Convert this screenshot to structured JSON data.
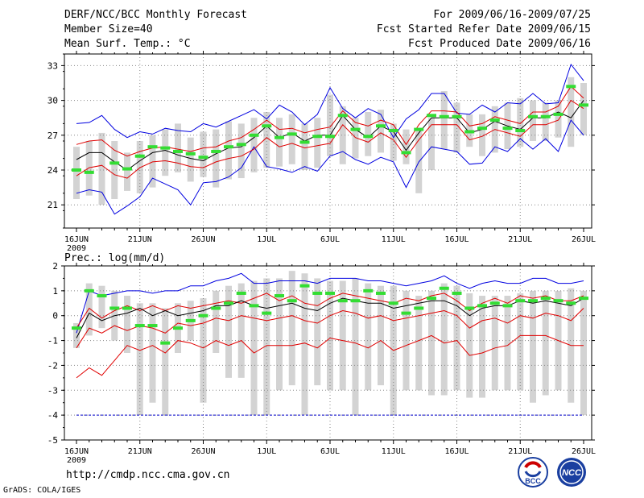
{
  "header": {
    "title": "DERF/NCC/BCC Monthly Forecast",
    "member_size": "Member Size=40",
    "variable": "Mean Surf. Temp.: °C",
    "forecast_period": "For 2009/06/16-2009/07/25",
    "started_date": "Fcst Started Refer Date 2009/06/15",
    "produced_date": "Fcst Produced Date 2009/06/16"
  },
  "footer": {
    "url": "http://cmdp.ncc.cma.gov.cn",
    "grads_credit": "GrADS: COLA/IGES"
  },
  "logos": {
    "bcc": "BCC",
    "ncc": "NCC"
  },
  "colors": {
    "box": "#d3d3d3",
    "mean": "#000000",
    "band_inner": "#e00000",
    "band_outer": "#0000e0",
    "median": "#33dd33",
    "grid": "#888888",
    "min_line": "#0000cc"
  },
  "chart_data": [
    {
      "type": "box",
      "title": "Mean Surf. Temp.: °C",
      "ylim": [
        19,
        34
      ],
      "yticks": [
        21,
        24,
        27,
        30,
        33
      ],
      "x_tick_labels": [
        "16JUN",
        "21JUN",
        "26JUN",
        "1JUL",
        "6JUL",
        "11JUL",
        "16JUL",
        "21JUL",
        "26JUL"
      ],
      "x_year_label": "2009",
      "days": 41,
      "box_low": [
        21.5,
        21.8,
        21.0,
        21.5,
        22.2,
        22.0,
        22.5,
        23.5,
        23.8,
        23.0,
        23.4,
        22.5,
        23.2,
        23.3,
        23.8,
        24.2,
        24.3,
        24.5,
        24.0,
        24.2,
        25.2,
        24.5,
        25.0,
        25.2,
        25.5,
        24.8,
        24.5,
        22.0,
        24.0,
        25.8,
        25.5,
        26.0,
        25.2,
        25.5,
        25.8,
        26.0,
        26.5,
        26.5,
        26.8,
        26.0,
        27.0
      ],
      "box_high": [
        26.0,
        26.5,
        27.2,
        26.5,
        25.5,
        26.5,
        27.0,
        27.5,
        28.0,
        26.8,
        27.3,
        27.5,
        28.2,
        28.0,
        28.5,
        29.0,
        28.5,
        28.8,
        28.0,
        28.5,
        30.5,
        29.5,
        28.5,
        29.0,
        29.2,
        28.0,
        27.5,
        27.5,
        28.5,
        30.8,
        29.8,
        28.8,
        28.8,
        29.5,
        29.8,
        30.2,
        30.0,
        29.8,
        30.0,
        32.0,
        31.5
      ],
      "mean": [
        24.9,
        25.5,
        25.5,
        24.7,
        24.0,
        24.8,
        25.5,
        25.7,
        25.3,
        25.0,
        24.8,
        25.4,
        25.9,
        26.0,
        26.8,
        27.8,
        26.8,
        27.2,
        26.5,
        27.0,
        27.0,
        28.7,
        27.5,
        26.8,
        27.8,
        27.3,
        25.7,
        27.2,
        28.5,
        28.5,
        28.5,
        27.2,
        27.5,
        28.2,
        27.8,
        27.5,
        28.5,
        28.5,
        29.0,
        28.5,
        30.0
      ],
      "red_upper": [
        26.2,
        26.5,
        26.6,
        25.7,
        25.2,
        25.6,
        25.9,
        26.0,
        25.8,
        25.6,
        25.9,
        26.0,
        26.5,
        26.8,
        27.5,
        28.3,
        27.5,
        27.6,
        27.2,
        27.5,
        27.7,
        29.1,
        28.1,
        27.8,
        28.3,
        27.9,
        26.2,
        27.9,
        29.1,
        29.1,
        29.0,
        27.8,
        28.0,
        28.6,
        28.3,
        28.0,
        29.0,
        29.0,
        29.5,
        31.2,
        30.2
      ],
      "red_lower": [
        23.5,
        24.2,
        24.4,
        23.6,
        23.3,
        24.2,
        24.7,
        24.8,
        24.6,
        24.3,
        24.2,
        24.7,
        25.0,
        25.2,
        25.8,
        26.8,
        26.0,
        26.3,
        25.9,
        26.1,
        26.3,
        27.9,
        26.8,
        26.4,
        27.2,
        26.6,
        25.1,
        26.6,
        27.9,
        27.9,
        27.9,
        26.6,
        26.9,
        27.5,
        27.2,
        26.9,
        27.9,
        27.9,
        28.3,
        30.0,
        29.3
      ],
      "blue_upper": [
        28.0,
        28.1,
        28.7,
        27.5,
        26.8,
        27.3,
        27.1,
        27.6,
        27.4,
        27.3,
        28.0,
        27.7,
        28.2,
        28.7,
        29.2,
        28.4,
        29.6,
        29.0,
        27.9,
        28.8,
        31.1,
        29.3,
        28.5,
        29.3,
        28.8,
        26.8,
        28.4,
        29.2,
        30.6,
        30.6,
        28.9,
        28.8,
        29.6,
        29.0,
        29.8,
        29.7,
        30.6,
        29.7,
        29.8,
        33.1,
        31.7
      ],
      "blue_lower": [
        22.0,
        22.3,
        22.1,
        20.2,
        20.9,
        21.7,
        23.3,
        22.8,
        22.3,
        21.0,
        22.9,
        23.0,
        23.4,
        24.2,
        26.0,
        24.3,
        24.1,
        23.8,
        24.3,
        23.9,
        25.2,
        25.6,
        24.9,
        24.5,
        25.1,
        24.7,
        22.5,
        24.7,
        26.0,
        25.8,
        25.6,
        24.5,
        24.6,
        26.0,
        25.6,
        26.7,
        25.8,
        26.7,
        25.6,
        28.3,
        27.0
      ],
      "median": [
        24.0,
        23.8,
        null,
        24.6,
        24.1,
        25.2,
        26.0,
        25.9,
        25.6,
        25.4,
        25.1,
        25.6,
        26.0,
        26.2,
        27.0,
        27.8,
        26.8,
        27.1,
        26.4,
        26.9,
        26.9,
        28.7,
        27.5,
        26.9,
        27.8,
        27.4,
        25.5,
        27.5,
        28.7,
        28.6,
        28.6,
        27.3,
        27.6,
        28.3,
        27.6,
        27.4,
        28.6,
        28.6,
        28.8,
        31.2,
        29.6
      ]
    },
    {
      "type": "box",
      "title": "Prec.: log(mm/d)",
      "ylim": [
        -5,
        2
      ],
      "yticks": [
        -5,
        -4,
        -3,
        -2,
        -1,
        0,
        1,
        2
      ],
      "x_tick_labels": [
        "16JUN",
        "21JUN",
        "26JUN",
        "1JUL",
        "6JUL",
        "11JUL",
        "16JUL",
        "21JUL",
        "26JUL"
      ],
      "x_year_label": "2009",
      "days": 41,
      "min_line": -4,
      "box_low": [
        -1.3,
        -0.8,
        -0.5,
        -1.0,
        -1.5,
        -4.0,
        -3.5,
        -4.0,
        -1.5,
        -1.0,
        -3.5,
        -1.5,
        -2.5,
        -2.5,
        -4.0,
        -4.0,
        -3.0,
        -2.8,
        -4.0,
        -2.8,
        -3.0,
        -3.0,
        -4.0,
        -3.0,
        -2.8,
        -4.0,
        -3.0,
        -3.0,
        -3.2,
        -3.2,
        -3.0,
        -3.3,
        -3.3,
        -3.0,
        -3.0,
        -3.0,
        -3.5,
        -3.2,
        -3.0,
        -3.5,
        -4.0
      ],
      "box_high": [
        -0.3,
        1.3,
        1.2,
        1.0,
        0.8,
        0.5,
        0.5,
        0.3,
        0.5,
        0.6,
        0.7,
        1.0,
        1.2,
        1.3,
        1.4,
        1.5,
        1.5,
        1.8,
        1.7,
        1.5,
        1.4,
        1.4,
        1.5,
        1.3,
        1.2,
        1.2,
        1.0,
        0.8,
        1.0,
        1.3,
        1.2,
        0.9,
        0.8,
        0.8,
        0.8,
        0.9,
        1.0,
        1.0,
        1.0,
        1.1,
        1.0
      ],
      "mean": [
        -0.9,
        0.1,
        -0.2,
        0.0,
        0.1,
        0.3,
        0.0,
        0.2,
        0.0,
        0.1,
        0.2,
        0.4,
        0.4,
        0.6,
        0.4,
        0.3,
        0.4,
        0.5,
        0.3,
        0.2,
        0.5,
        0.7,
        0.6,
        0.5,
        0.5,
        0.3,
        0.4,
        0.5,
        0.6,
        0.6,
        0.4,
        0.0,
        0.3,
        0.4,
        0.4,
        0.6,
        0.5,
        0.6,
        0.5,
        0.4,
        0.7
      ],
      "red_upper": [
        -0.5,
        0.3,
        -0.1,
        0.2,
        0.4,
        0.2,
        0.4,
        0.2,
        0.4,
        0.3,
        0.4,
        0.5,
        0.6,
        0.5,
        0.7,
        0.9,
        0.6,
        0.8,
        0.5,
        0.4,
        0.7,
        0.9,
        0.8,
        0.7,
        0.6,
        0.5,
        0.7,
        0.6,
        0.8,
        0.9,
        0.6,
        0.2,
        0.5,
        0.7,
        0.5,
        0.8,
        0.7,
        0.8,
        0.6,
        0.6,
        0.8
      ],
      "red_lower": [
        -1.3,
        -0.5,
        -0.7,
        -0.4,
        -0.6,
        -0.4,
        -0.5,
        -0.7,
        -0.3,
        -0.4,
        -0.3,
        -0.1,
        -0.2,
        0.0,
        -0.1,
        -0.2,
        -0.1,
        0.0,
        -0.2,
        -0.3,
        0.0,
        0.2,
        0.1,
        -0.1,
        0.0,
        -0.2,
        -0.1,
        0.0,
        0.1,
        0.2,
        0.0,
        -0.5,
        -0.2,
        -0.1,
        -0.3,
        0.0,
        -0.1,
        0.1,
        0.0,
        -0.2,
        0.3
      ],
      "red_min": [
        -2.5,
        -2.1,
        -2.4,
        -1.8,
        -1.2,
        -1.4,
        -1.2,
        -1.5,
        -1.0,
        -1.1,
        -1.3,
        -1.0,
        -1.2,
        -1.0,
        -1.5,
        -1.2,
        -1.2,
        -1.2,
        -1.1,
        -1.3,
        -0.9,
        -1.0,
        -1.1,
        -1.3,
        -1.0,
        -1.4,
        -1.2,
        -1.0,
        -0.8,
        -1.1,
        -1.0,
        -1.6,
        -1.5,
        -1.3,
        -1.2,
        -0.8,
        -0.8,
        -0.8,
        -1.0,
        -1.2,
        -1.2
      ],
      "blue_upper": [
        -0.7,
        1.0,
        0.8,
        0.9,
        1.0,
        1.0,
        0.9,
        1.0,
        1.0,
        1.2,
        1.2,
        1.4,
        1.5,
        1.7,
        1.3,
        1.3,
        1.4,
        1.4,
        1.4,
        1.3,
        1.5,
        1.5,
        1.5,
        1.4,
        1.4,
        1.3,
        1.2,
        1.3,
        1.4,
        1.6,
        1.3,
        1.1,
        1.3,
        1.4,
        1.3,
        1.3,
        1.5,
        1.5,
        1.3,
        1.3,
        1.4
      ],
      "median": [
        -0.5,
        1.0,
        0.8,
        0.3,
        0.3,
        -0.4,
        -0.4,
        -1.1,
        -0.5,
        -0.2,
        0.0,
        0.3,
        0.5,
        0.9,
        0.4,
        0.1,
        0.8,
        0.6,
        1.2,
        0.9,
        0.9,
        0.6,
        0.6,
        1.0,
        0.9,
        0.5,
        0.1,
        0.3,
        0.7,
        1.1,
        0.9,
        0.3,
        0.4,
        0.5,
        0.4,
        0.6,
        0.6,
        0.7,
        0.6,
        0.5,
        0.7
      ]
    }
  ]
}
